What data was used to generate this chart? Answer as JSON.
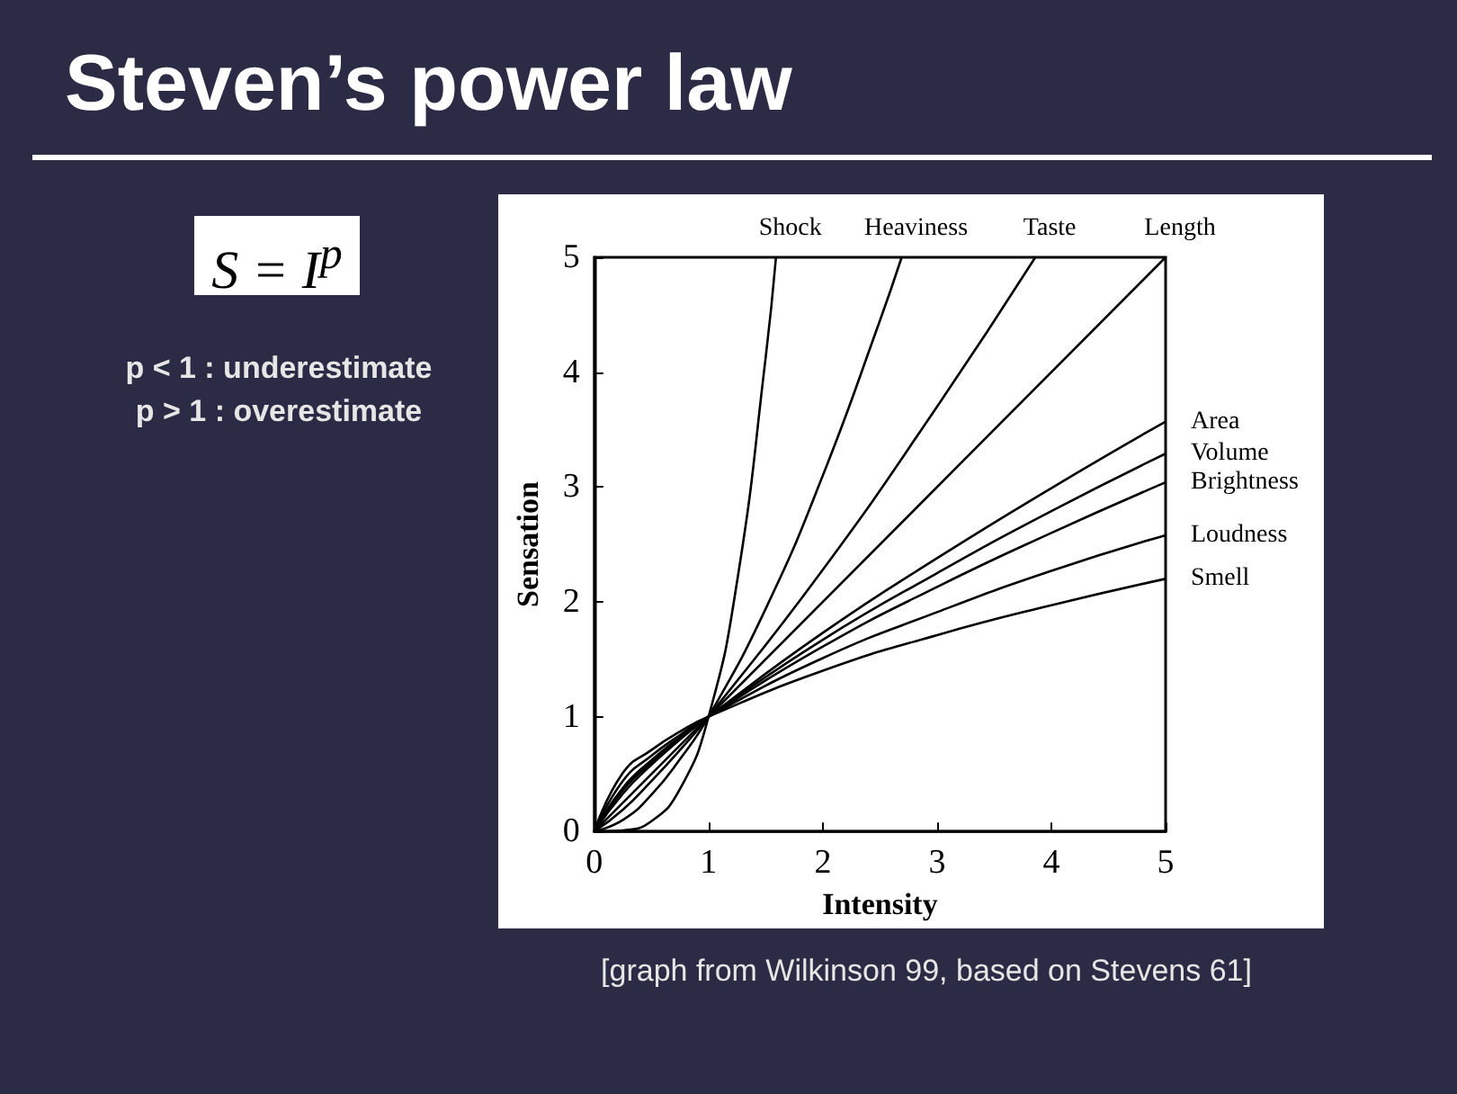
{
  "chart_data": {
    "type": "line",
    "title": "Steven’s power law",
    "xlabel": "Intensity",
    "ylabel": "Sensation",
    "xlim": [
      0,
      5
    ],
    "ylim": [
      0,
      5
    ],
    "xticks": [
      0,
      1,
      2,
      3,
      4,
      5
    ],
    "yticks": [
      0,
      1,
      2,
      3,
      4,
      5
    ],
    "grid": false,
    "legend": false,
    "marker": "none",
    "line_style": "solid",
    "annotations": [
      "S = I$^{p}$",
      "p < 1 : underestimate",
      "p > 1 : overestimate",
      "[graph from Wilkinson 99, based on Stevens 61]"
    ],
    "series": [
      {
        "name": "Shock",
        "color": "#000000",
        "x": [
          0,
          0.25,
          0.5,
          0.75,
          1,
          1.25,
          1.5,
          1.59
        ],
        "values": [
          0,
          0.01,
          0.09,
          0.37,
          1,
          2.18,
          4.13,
          5
        ]
      },
      {
        "name": "Heaviness",
        "color": "#000000",
        "x": [
          0,
          0.25,
          0.5,
          0.75,
          1,
          1.5,
          2,
          2.5,
          2.69
        ],
        "values": [
          0,
          0.1,
          0.32,
          0.63,
          1,
          1.94,
          3.1,
          4.45,
          5
        ]
      },
      {
        "name": "Taste",
        "color": "#000000",
        "x": [
          0,
          0.25,
          0.5,
          0.75,
          1,
          2,
          3,
          3.86
        ],
        "values": [
          0,
          0.19,
          0.44,
          0.71,
          1,
          2.28,
          3.7,
          5
        ]
      },
      {
        "name": "Length",
        "color": "#000000",
        "x": [
          0,
          5
        ],
        "values": [
          0,
          5
        ]
      },
      {
        "name": "Area",
        "color": "#000000",
        "x": [
          0,
          0.25,
          0.5,
          0.75,
          1,
          2,
          3,
          4,
          5
        ],
        "values": [
          0,
          0.33,
          0.58,
          0.8,
          1,
          1.73,
          2.38,
          2.99,
          3.57
        ]
      },
      {
        "name": "Volume",
        "color": "#000000",
        "x": [
          0,
          0.25,
          0.5,
          0.75,
          1,
          2,
          3,
          4,
          5
        ],
        "values": [
          0,
          0.36,
          0.6,
          0.81,
          1,
          1.67,
          2.25,
          2.79,
          3.29
        ]
      },
      {
        "name": "Brightness",
        "color": "#000000",
        "x": [
          0,
          0.25,
          0.5,
          0.75,
          1,
          2,
          3,
          4,
          5
        ],
        "values": [
          0,
          0.38,
          0.62,
          0.82,
          1,
          1.61,
          2.13,
          2.6,
          3.04
        ]
      },
      {
        "name": "Loudness",
        "color": "#000000",
        "x": [
          0,
          0.25,
          0.5,
          0.75,
          1,
          2,
          3,
          4,
          5
        ],
        "values": [
          0,
          0.44,
          0.66,
          0.84,
          1,
          1.51,
          1.91,
          2.27,
          2.58
        ]
      },
      {
        "name": "Smell",
        "color": "#000000",
        "x": [
          0,
          0.25,
          0.5,
          0.75,
          1,
          2,
          3,
          4,
          5
        ],
        "values": [
          0,
          0.51,
          0.71,
          0.87,
          1,
          1.4,
          1.71,
          1.97,
          2.2
        ]
      }
    ]
  }
}
